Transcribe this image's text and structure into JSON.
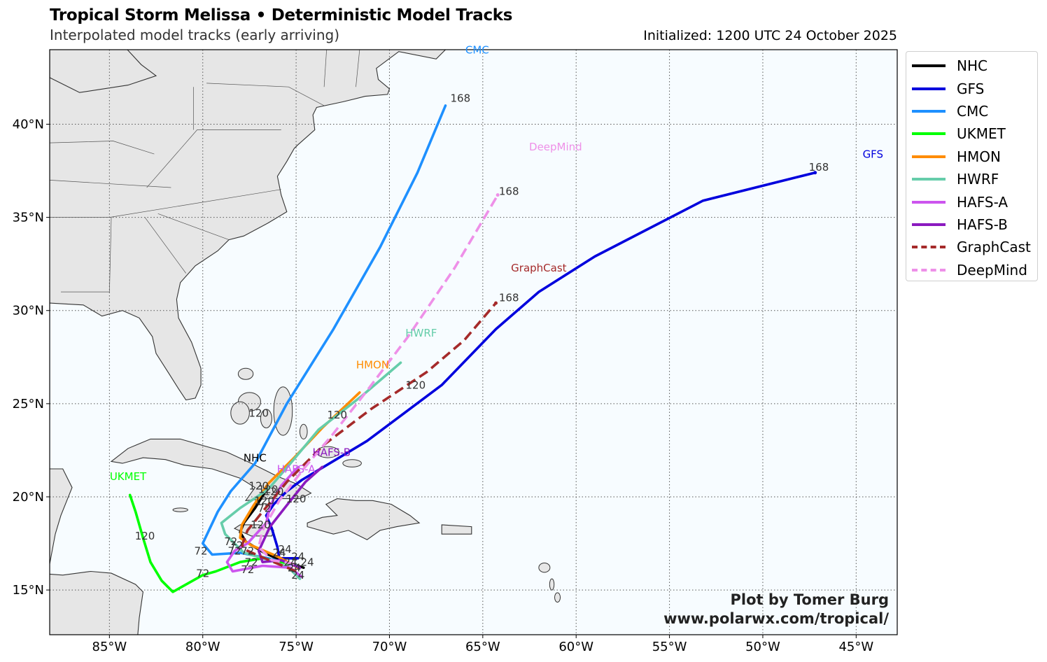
{
  "title": "Tropical Storm Melissa • Deterministic Model Tracks",
  "subtitle": "Interpolated model tracks (early arriving)",
  "initialized": "Initialized: 1200 UTC 24 October 2025",
  "credit": {
    "line1": "Plot by Tomer Burg",
    "line2": "www.polarwx.com/tropical/"
  },
  "map": {
    "lon_range": [
      -88.2,
      -42.8
    ],
    "lat_range": [
      12.6,
      44.0
    ],
    "lon_ticks": [
      {
        "lon": -85,
        "label": "85°W"
      },
      {
        "lon": -80,
        "label": "80°W"
      },
      {
        "lon": -75,
        "label": "75°W"
      },
      {
        "lon": -70,
        "label": "70°W"
      },
      {
        "lon": -65,
        "label": "65°W"
      },
      {
        "lon": -60,
        "label": "60°W"
      },
      {
        "lon": -55,
        "label": "55°W"
      },
      {
        "lon": -50,
        "label": "50°W"
      },
      {
        "lon": -45,
        "label": "45°W"
      }
    ],
    "lat_ticks": [
      {
        "lat": 15,
        "label": "15°N"
      },
      {
        "lat": 20,
        "label": "20°N"
      },
      {
        "lat": 25,
        "label": "25°N"
      },
      {
        "lat": 30,
        "label": "30°N"
      },
      {
        "lat": 35,
        "label": "35°N"
      },
      {
        "lat": 40,
        "label": "40°N"
      }
    ],
    "ocean_color": "#f7fcff",
    "land_color": "#e6e6e6",
    "coast_color": "#333333",
    "grid": "dotted"
  },
  "models": [
    {
      "name": "NHC",
      "color": "#000000",
      "dashed": false,
      "track": [
        [
          -74.6,
          16.2
        ],
        [
          -75.6,
          16.5
        ],
        [
          -76.7,
          17.0
        ],
        [
          -77.7,
          17.6
        ],
        [
          -78.0,
          18.1
        ],
        [
          -77.8,
          18.6
        ],
        [
          -77.2,
          19.4
        ],
        [
          -76.7,
          20.2
        ]
      ],
      "hour_labels": [],
      "end_label": "NHC",
      "end_label_pos": [
        -77.2,
        21.9
      ]
    },
    {
      "name": "GFS",
      "color": "#0000dd",
      "dashed": false,
      "track": [
        [
          -74.9,
          16.7
        ],
        [
          -75.9,
          16.7
        ],
        [
          -76.0,
          17.3
        ],
        [
          -76.3,
          18.3
        ],
        [
          -76.6,
          19.0
        ],
        [
          -76.2,
          19.6
        ],
        [
          -75.5,
          20.3
        ],
        [
          -74.7,
          20.9
        ],
        [
          -73.2,
          21.8
        ],
        [
          -71.2,
          23.0
        ],
        [
          -69.2,
          24.5
        ],
        [
          -67.2,
          26.0
        ],
        [
          -64.3,
          29.0
        ],
        [
          -62.0,
          31.0
        ],
        [
          -59.0,
          32.9
        ],
        [
          -53.2,
          35.9
        ],
        [
          -47.2,
          37.4
        ]
      ],
      "hour_labels": [
        {
          "text": "24",
          "pos": [
            -75.6,
            17.0
          ]
        },
        {
          "text": "72",
          "pos": [
            -76.7,
            19.2
          ]
        },
        {
          "text": "120",
          "pos": [
            -68.6,
            25.8
          ]
        },
        {
          "text": "168",
          "pos": [
            -47.0,
            37.5
          ]
        }
      ],
      "end_label": "GFS",
      "end_label_pos": [
        -44.1,
        38.2
      ]
    },
    {
      "name": "CMC",
      "color": "#1e90ff",
      "dashed": false,
      "track": [
        [
          -75.0,
          16.3
        ],
        [
          -76.5,
          16.7
        ],
        [
          -78.0,
          17.0
        ],
        [
          -79.5,
          16.9
        ],
        [
          -80.0,
          17.5
        ],
        [
          -79.2,
          19.2
        ],
        [
          -78.5,
          20.3
        ],
        [
          -77.2,
          21.8
        ],
        [
          -75.5,
          25.0
        ],
        [
          -73.0,
          29.0
        ],
        [
          -70.5,
          33.4
        ],
        [
          -68.5,
          37.4
        ],
        [
          -67.0,
          41.0
        ]
      ],
      "hour_labels": [
        {
          "text": "72",
          "pos": [
            -80.1,
            16.9
          ]
        },
        {
          "text": "120",
          "pos": [
            -77.0,
            24.3
          ]
        },
        {
          "text": "168",
          "pos": [
            -66.2,
            41.2
          ]
        }
      ],
      "end_label": "CMC",
      "end_label_pos": [
        -65.3,
        43.8
      ]
    },
    {
      "name": "UKMET",
      "color": "#00ff00",
      "dashed": false,
      "track": [
        [
          -75.3,
          16.4
        ],
        [
          -76.8,
          16.7
        ],
        [
          -78.0,
          16.5
        ],
        [
          -79.3,
          16.0
        ],
        [
          -80.0,
          15.8
        ],
        [
          -81.6,
          14.9
        ],
        [
          -82.2,
          15.5
        ],
        [
          -82.8,
          16.5
        ],
        [
          -83.2,
          17.8
        ],
        [
          -83.6,
          19.2
        ],
        [
          -83.9,
          20.1
        ]
      ],
      "hour_labels": [
        {
          "text": "72",
          "pos": [
            -80.0,
            15.7
          ]
        },
        {
          "text": "120",
          "pos": [
            -83.1,
            17.7
          ]
        }
      ],
      "end_label": "UKMET",
      "end_label_pos": [
        -84.0,
        20.9
      ]
    },
    {
      "name": "HMON",
      "color": "#ff8c00",
      "dashed": false,
      "track": [
        [
          -74.9,
          16.2
        ],
        [
          -76.0,
          16.8
        ],
        [
          -77.4,
          17.4
        ],
        [
          -78.0,
          17.8
        ],
        [
          -77.9,
          18.5
        ],
        [
          -77.3,
          19.5
        ],
        [
          -76.5,
          20.7
        ],
        [
          -75.2,
          22.0
        ],
        [
          -73.6,
          23.7
        ],
        [
          -71.6,
          25.6
        ]
      ],
      "hour_labels": [
        {
          "text": "72",
          "pos": [
            -78.2,
            17.2
          ]
        },
        {
          "text": "120",
          "pos": [
            -76.7,
            19.6
          ]
        }
      ],
      "end_label": "HMON",
      "end_label_pos": [
        -70.9,
        26.9
      ]
    },
    {
      "name": "HWRF",
      "color": "#66cdaa",
      "dashed": false,
      "track": [
        [
          -74.8,
          15.6
        ],
        [
          -75.4,
          16.2
        ],
        [
          -76.4,
          16.6
        ],
        [
          -77.8,
          17.0
        ],
        [
          -78.8,
          18.0
        ],
        [
          -79.0,
          18.6
        ],
        [
          -78.0,
          19.4
        ],
        [
          -76.5,
          20.4
        ],
        [
          -75.3,
          21.8
        ],
        [
          -73.8,
          23.6
        ],
        [
          -71.5,
          25.4
        ],
        [
          -69.4,
          27.2
        ]
      ],
      "hour_labels": [
        {
          "text": "24",
          "pos": [
            -74.9,
            15.6
          ]
        },
        {
          "text": "120",
          "pos": [
            -72.8,
            24.2
          ]
        }
      ],
      "end_label": "HWRF",
      "end_label_pos": [
        -68.3,
        28.6
      ]
    },
    {
      "name": "HAFS-A",
      "color": "#cc55ee",
      "dashed": false,
      "track": [
        [
          -74.7,
          15.7
        ],
        [
          -75.3,
          16.2
        ],
        [
          -76.8,
          16.3
        ],
        [
          -78.4,
          16.0
        ],
        [
          -78.7,
          16.5
        ],
        [
          -78.3,
          17.1
        ],
        [
          -77.6,
          17.5
        ],
        [
          -76.6,
          18.6
        ],
        [
          -76.4,
          19.5
        ],
        [
          -75.8,
          20.6
        ],
        [
          -74.9,
          21.6
        ]
      ],
      "hour_labels": [
        {
          "text": "24",
          "pos": [
            -75.1,
            16.0
          ]
        },
        {
          "text": "72",
          "pos": [
            -77.6,
            15.9
          ]
        },
        {
          "text": "120",
          "pos": [
            -76.9,
            18.3
          ]
        }
      ],
      "end_label": "HAFS-A",
      "end_label_pos": [
        -75.0,
        21.3
      ]
    },
    {
      "name": "HAFS-B",
      "color": "#8b1abf",
      "dashed": false,
      "track": [
        [
          -74.8,
          16.2
        ],
        [
          -75.8,
          16.6
        ],
        [
          -76.8,
          16.5
        ],
        [
          -77.0,
          17.1
        ],
        [
          -76.4,
          18.4
        ],
        [
          -75.3,
          19.8
        ],
        [
          -74.5,
          20.8
        ],
        [
          -73.6,
          21.6
        ]
      ],
      "hour_labels": [
        {
          "text": "24",
          "pos": [
            -75.3,
            16.3
          ]
        },
        {
          "text": "72",
          "pos": [
            -77.4,
            16.3
          ]
        },
        {
          "text": "120",
          "pos": [
            -75.0,
            19.7
          ]
        }
      ],
      "end_label": "HAFS-B",
      "end_label_pos": [
        -73.1,
        22.2
      ]
    },
    {
      "name": "GraphCast",
      "color": "#a52a2a",
      "dashed": true,
      "track": [
        [
          -75.0,
          16.0
        ],
        [
          -76.2,
          16.5
        ],
        [
          -77.6,
          17.1
        ],
        [
          -77.9,
          17.4
        ],
        [
          -77.6,
          18.2
        ],
        [
          -76.8,
          19.2
        ],
        [
          -75.5,
          20.8
        ],
        [
          -73.5,
          22.8
        ],
        [
          -71.0,
          24.7
        ],
        [
          -68.0,
          26.7
        ],
        [
          -66.0,
          28.4
        ],
        [
          -64.3,
          30.4
        ]
      ],
      "hour_labels": [
        {
          "text": "120",
          "pos": [
            -76.5,
            20.2
          ]
        },
        {
          "text": "168",
          "pos": [
            -63.6,
            30.5
          ]
        }
      ],
      "end_label": "GraphCast",
      "end_label_pos": [
        -62.0,
        32.1
      ]
    },
    {
      "name": "DeepMind",
      "color": "#ee90e8",
      "dashed": true,
      "track": [
        [
          -75.1,
          16.4
        ],
        [
          -76.3,
          16.6
        ],
        [
          -77.0,
          17.3
        ],
        [
          -76.8,
          18.2
        ],
        [
          -75.9,
          19.8
        ],
        [
          -74.6,
          21.5
        ],
        [
          -73.0,
          23.4
        ],
        [
          -71.2,
          25.7
        ],
        [
          -69.0,
          28.6
        ],
        [
          -66.5,
          32.3
        ],
        [
          -64.2,
          36.2
        ]
      ],
      "hour_labels": [
        {
          "text": "120",
          "pos": [
            -76.2,
            20.1
          ]
        },
        {
          "text": "168",
          "pos": [
            -63.6,
            36.2
          ]
        }
      ],
      "end_label": "DeepMind",
      "end_label_pos": [
        -61.1,
        38.6
      ]
    }
  ],
  "extra_hour_labels": [
    {
      "text": "72",
      "pos": [
        -78.5,
        17.4
      ]
    },
    {
      "text": "72",
      "pos": [
        -78.3,
        16.9
      ]
    },
    {
      "text": "72",
      "pos": [
        -77.6,
        16.9
      ]
    },
    {
      "text": "24",
      "pos": [
        -74.4,
        16.3
      ]
    },
    {
      "text": "24",
      "pos": [
        -74.9,
        16.6
      ]
    },
    {
      "text": "24",
      "pos": [
        -75.9,
        16.8
      ]
    },
    {
      "text": "120",
      "pos": [
        -77.0,
        20.4
      ]
    }
  ]
}
